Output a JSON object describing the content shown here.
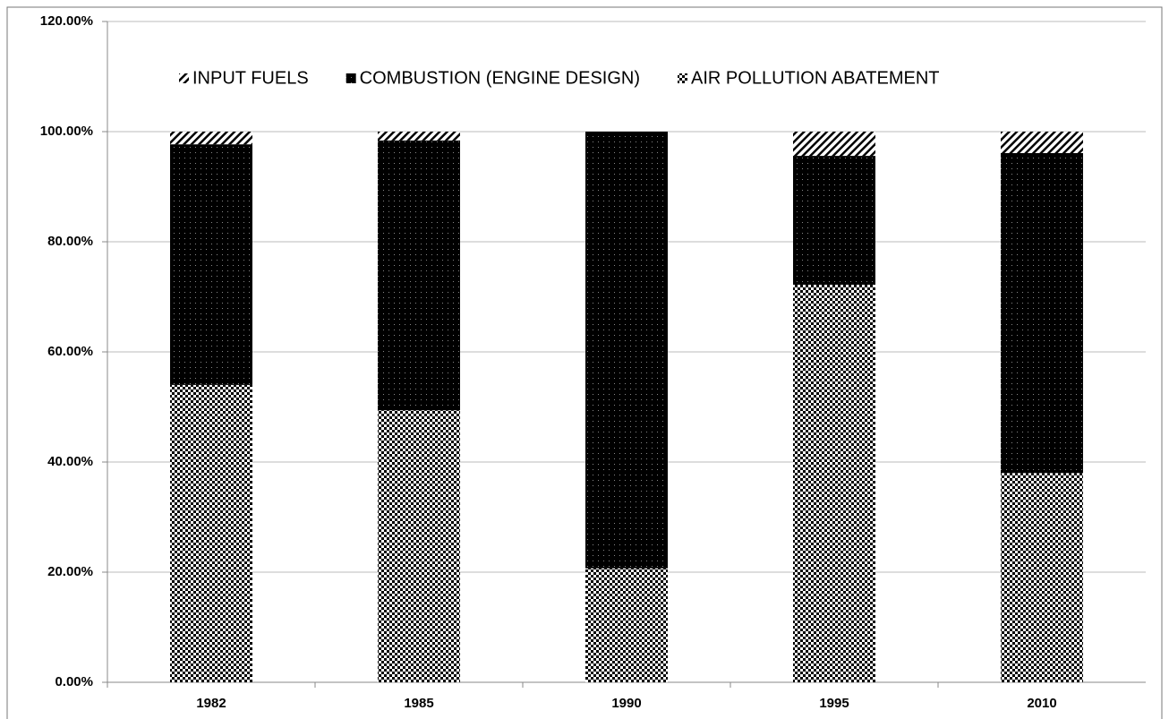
{
  "chart_data": {
    "type": "stacked-bar",
    "categories": [
      "1982",
      "1985",
      "1990",
      "1995",
      "2010"
    ],
    "series": [
      {
        "name": "INPUT FUELS",
        "color": "#000000",
        "pattern": "hatch",
        "values": [
          2.3,
          1.6,
          0,
          4.4,
          3.9
        ]
      },
      {
        "name": "COMBUSTION (ENGINE DESIGN)",
        "color": "#000000",
        "pattern": "dots",
        "values": [
          43.7,
          49,
          79.3,
          23.4,
          58.1
        ]
      },
      {
        "name": "AIR POLLUTION ABATEMENT",
        "color": "#000000",
        "pattern": "checker",
        "values": [
          54,
          49.4,
          20.7,
          72.2,
          38
        ]
      }
    ],
    "ylim": [
      0,
      120
    ],
    "yticks": [
      {
        "value": 0,
        "label": "0.00%"
      },
      {
        "value": 20,
        "label": "20.00%"
      },
      {
        "value": 40,
        "label": "40.00%"
      },
      {
        "value": 60,
        "label": "60.00%"
      },
      {
        "value": 80,
        "label": "80.00%"
      },
      {
        "value": 100,
        "label": "100.00%"
      },
      {
        "value": 120,
        "label": "120.00%"
      }
    ],
    "grid": true,
    "legend": "top"
  }
}
